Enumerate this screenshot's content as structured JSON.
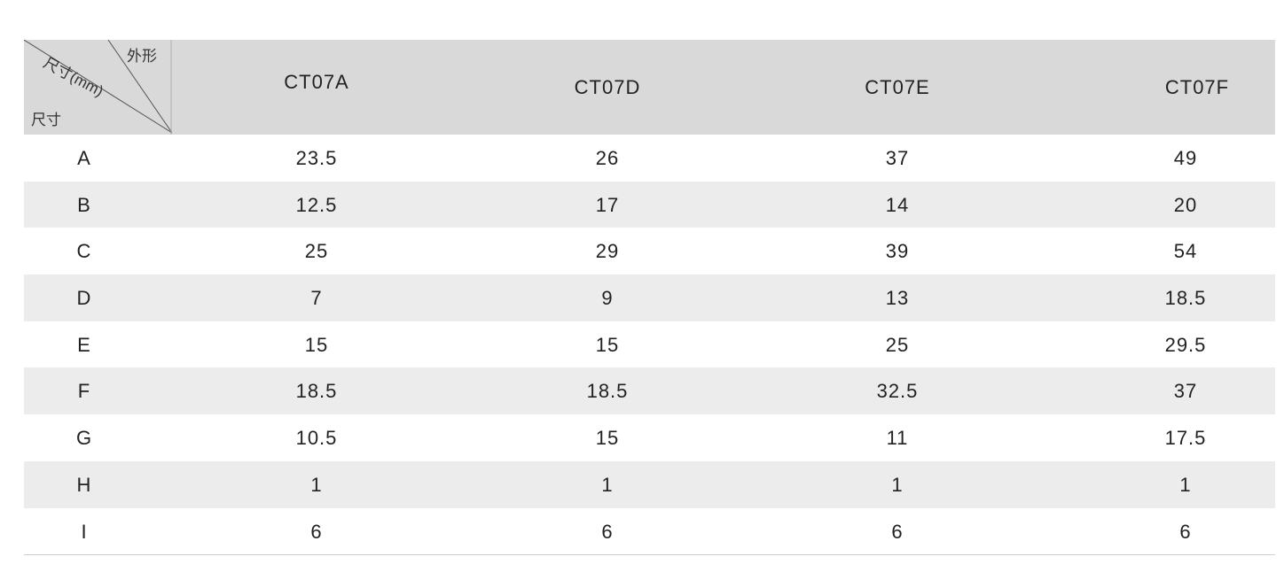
{
  "table": {
    "corner": {
      "shape_label": "外形",
      "dimension_mm_label": "尺寸(mm)",
      "size_label": "尺寸"
    },
    "columns": [
      "CT07A",
      "CT07D",
      "CT07E",
      "CT07F"
    ],
    "rows": [
      {
        "label": "A",
        "values": [
          "23.5",
          "26",
          "37",
          "49"
        ]
      },
      {
        "label": "B",
        "values": [
          "12.5",
          "17",
          "14",
          "20"
        ]
      },
      {
        "label": "C",
        "values": [
          "25",
          "29",
          "39",
          "54"
        ]
      },
      {
        "label": "D",
        "values": [
          "7",
          "9",
          "13",
          "18.5"
        ]
      },
      {
        "label": "E",
        "values": [
          "15",
          "15",
          "25",
          "29.5"
        ]
      },
      {
        "label": "F",
        "values": [
          "18.5",
          "18.5",
          "32.5",
          "37"
        ]
      },
      {
        "label": "G",
        "values": [
          "10.5",
          "15",
          "11",
          "17.5"
        ]
      },
      {
        "label": "H",
        "values": [
          "1",
          "1",
          "1",
          "1"
        ]
      },
      {
        "label": "I",
        "values": [
          "6",
          "6",
          "6",
          "6"
        ]
      }
    ]
  }
}
